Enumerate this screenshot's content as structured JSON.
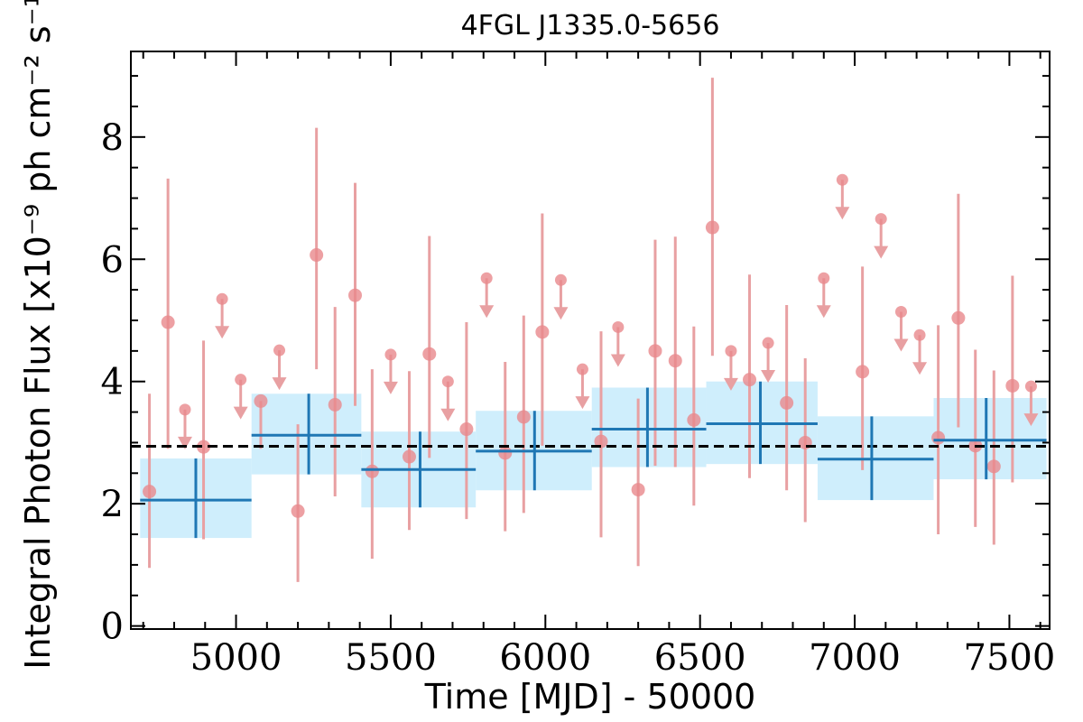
{
  "chart_data": {
    "type": "scatter",
    "title": "4FGL J1335.0-5656",
    "xlabel": "Time [MJD] - 50000",
    "ylabel": "Integral Photon Flux [x10⁻⁹ ph cm⁻² s⁻¹]",
    "xlim": [
      4660,
      7630
    ],
    "ylim": [
      -0.05,
      9.4
    ],
    "x_ticks": [
      5000,
      5500,
      6000,
      6500,
      7000,
      7500
    ],
    "y_ticks": [
      0,
      2,
      4,
      6,
      8
    ],
    "grid": false,
    "mean_flux": 2.94,
    "colors": {
      "points": "#e8888c",
      "error_bars": "#e8a0a2",
      "bins": "#1f77b4",
      "bin_band": "#cfeefc",
      "mean_line": "#000000"
    },
    "series": [
      {
        "marker": "circle",
        "points": [
          {
            "x": 4720,
            "y": 2.2,
            "ylo": 0.95,
            "yhi": 3.8
          },
          {
            "x": 4780,
            "y": 4.97,
            "ylo": 2.9,
            "yhi": 7.32
          },
          {
            "x": 4895,
            "y": 2.93,
            "ylo": 1.42,
            "yhi": 4.67
          },
          {
            "x": 5080,
            "y": 3.68,
            "ylo": 2.9,
            "yhi": 3.68
          },
          {
            "x": 5200,
            "y": 1.88,
            "ylo": 0.72,
            "yhi": 3.3
          },
          {
            "x": 5260,
            "y": 6.07,
            "ylo": 4.2,
            "yhi": 8.15
          },
          {
            "x": 5320,
            "y": 3.62,
            "ylo": 2.12,
            "yhi": 5.22
          },
          {
            "x": 5385,
            "y": 5.41,
            "ylo": 3.6,
            "yhi": 7.25
          },
          {
            "x": 5440,
            "y": 2.53,
            "ylo": 1.1,
            "yhi": 4.2
          },
          {
            "x": 5560,
            "y": 2.77,
            "ylo": 1.57,
            "yhi": 4.17
          },
          {
            "x": 5625,
            "y": 4.45,
            "ylo": 2.75,
            "yhi": 6.38
          },
          {
            "x": 5745,
            "y": 3.22,
            "ylo": 1.75,
            "yhi": 4.97
          },
          {
            "x": 5870,
            "y": 2.83,
            "ylo": 1.55,
            "yhi": 4.32
          },
          {
            "x": 5930,
            "y": 3.42,
            "ylo": 1.85,
            "yhi": 5.08
          },
          {
            "x": 5990,
            "y": 4.81,
            "ylo": 2.95,
            "yhi": 6.75
          },
          {
            "x": 6180,
            "y": 3.02,
            "ylo": 1.45,
            "yhi": 4.82
          },
          {
            "x": 6300,
            "y": 2.23,
            "ylo": 0.98,
            "yhi": 3.72
          },
          {
            "x": 6355,
            "y": 4.5,
            "ylo": 2.62,
            "yhi": 6.32
          },
          {
            "x": 6420,
            "y": 4.34,
            "ylo": 2.6,
            "yhi": 6.37
          },
          {
            "x": 6480,
            "y": 3.37,
            "ylo": 1.97,
            "yhi": 4.9
          },
          {
            "x": 6540,
            "y": 6.52,
            "ylo": 4.42,
            "yhi": 8.97
          },
          {
            "x": 6660,
            "y": 4.03,
            "ylo": 2.42,
            "yhi": 5.75
          },
          {
            "x": 6780,
            "y": 3.65,
            "ylo": 2.22,
            "yhi": 5.25
          },
          {
            "x": 6840,
            "y": 3.0,
            "ylo": 1.7,
            "yhi": 4.38
          },
          {
            "x": 7025,
            "y": 4.16,
            "ylo": 2.55,
            "yhi": 5.88
          },
          {
            "x": 7270,
            "y": 3.08,
            "ylo": 1.5,
            "yhi": 4.92
          },
          {
            "x": 7335,
            "y": 5.04,
            "ylo": 3.25,
            "yhi": 7.07
          },
          {
            "x": 7390,
            "y": 2.95,
            "ylo": 1.62,
            "yhi": 4.52
          },
          {
            "x": 7450,
            "y": 2.61,
            "ylo": 1.33,
            "yhi": 4.18
          },
          {
            "x": 7510,
            "y": 3.93,
            "ylo": 2.35,
            "yhi": 5.73
          }
        ]
      },
      {
        "marker": "upper-limit",
        "points": [
          {
            "x": 4835,
            "y": 3.54
          },
          {
            "x": 4955,
            "y": 5.35
          },
          {
            "x": 5015,
            "y": 4.03
          },
          {
            "x": 5140,
            "y": 4.51
          },
          {
            "x": 5500,
            "y": 4.44
          },
          {
            "x": 5685,
            "y": 4.0
          },
          {
            "x": 5810,
            "y": 5.69
          },
          {
            "x": 6050,
            "y": 5.66
          },
          {
            "x": 6120,
            "y": 4.2
          },
          {
            "x": 6235,
            "y": 4.89
          },
          {
            "x": 6600,
            "y": 4.5
          },
          {
            "x": 6720,
            "y": 4.63
          },
          {
            "x": 6900,
            "y": 5.69
          },
          {
            "x": 6960,
            "y": 7.3
          },
          {
            "x": 7085,
            "y": 6.66
          },
          {
            "x": 7150,
            "y": 5.14
          },
          {
            "x": 7210,
            "y": 4.76
          },
          {
            "x": 7570,
            "y": 3.92
          }
        ]
      },
      {
        "marker": "bin",
        "points": [
          {
            "x0": 4690,
            "x1": 5050,
            "y": 2.06,
            "ylo": 1.44,
            "yhi": 2.74,
            "xc": 4870
          },
          {
            "x0": 5050,
            "x1": 5405,
            "y": 3.12,
            "ylo": 2.48,
            "yhi": 3.8,
            "xc": 5235
          },
          {
            "x0": 5405,
            "x1": 5775,
            "y": 2.56,
            "ylo": 1.94,
            "yhi": 3.18,
            "xc": 5595
          },
          {
            "x0": 5775,
            "x1": 6150,
            "y": 2.86,
            "ylo": 2.22,
            "yhi": 3.52,
            "xc": 5965
          },
          {
            "x0": 6150,
            "x1": 6520,
            "y": 3.22,
            "ylo": 2.6,
            "yhi": 3.9,
            "xc": 6330
          },
          {
            "x0": 6520,
            "x1": 6880,
            "y": 3.31,
            "ylo": 2.65,
            "yhi": 4.0,
            "xc": 6695
          },
          {
            "x0": 6880,
            "x1": 7255,
            "y": 2.73,
            "ylo": 2.06,
            "yhi": 3.43,
            "xc": 7055
          },
          {
            "x0": 7255,
            "x1": 7620,
            "y": 3.04,
            "ylo": 2.4,
            "yhi": 3.73,
            "xc": 7425
          }
        ]
      }
    ]
  }
}
